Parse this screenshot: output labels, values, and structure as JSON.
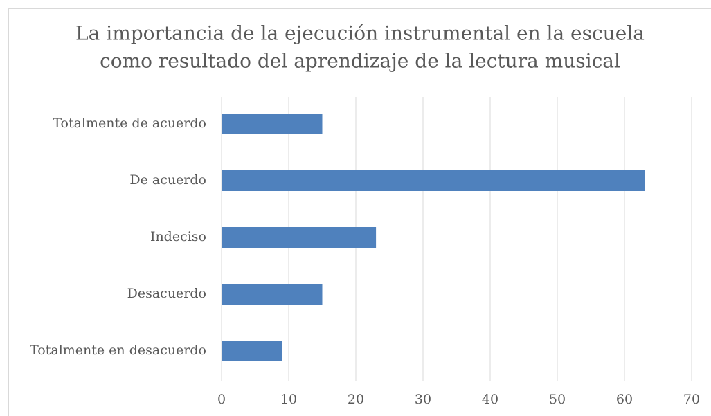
{
  "chart_data": {
    "type": "bar",
    "orientation": "horizontal",
    "title": [
      "La importancia de la ejecución instrumental en la escuela",
      "como resultado del aprendizaje de la lectura musical"
    ],
    "categories": [
      "Totalmente de acuerdo",
      "De acuerdo",
      "Indeciso",
      "Desacuerdo",
      "Totalmente en desacuerdo"
    ],
    "values": [
      15,
      63,
      23,
      15,
      9
    ],
    "color": "#4f81bd",
    "xlim": [
      0,
      70
    ],
    "xticks": [
      0,
      10,
      20,
      30,
      40,
      50,
      60,
      70
    ],
    "grid": true
  }
}
